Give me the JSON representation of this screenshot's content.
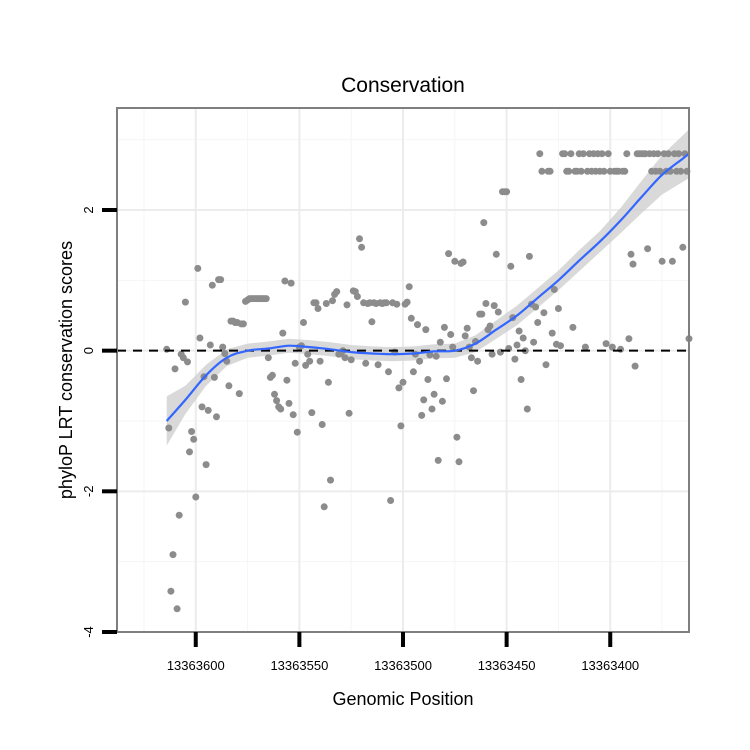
{
  "chart_data": {
    "type": "scatter",
    "title": "Conservation",
    "xlabel": "Genomic Position",
    "ylabel": "phyloP LRT conservation scores",
    "xlim": [
      13363362,
      13363638
    ],
    "x_reversed": true,
    "ylim": [
      -4,
      3.45
    ],
    "x_ticks": [
      13363600,
      13363550,
      13363500,
      13363450,
      13363400
    ],
    "x_tick_labels": [
      "13363600",
      "13363550",
      "13363500",
      "13363450",
      "13363400"
    ],
    "y_ticks": [
      -4,
      -2,
      0,
      2
    ],
    "y_tick_labels": [
      "-4",
      "-2",
      "0",
      "2"
    ],
    "reference_line_y": 0,
    "grid": true,
    "colors": {
      "points": "#8c8c8c",
      "smooth_line": "#3366ff",
      "ribbon": "#d0d0d0",
      "grid": "#ececec",
      "panel_border": "#7f7f7f",
      "hline": "#000000"
    },
    "series": [
      {
        "name": "phyloP scores",
        "points": [
          [
            13363614,
            0.02
          ],
          [
            13363613,
            -1.1
          ],
          [
            13363612,
            -3.42
          ],
          [
            13363611,
            -2.9
          ],
          [
            13363610,
            -0.26
          ],
          [
            13363609,
            -3.67
          ],
          [
            13363608,
            -2.34
          ],
          [
            13363607,
            -0.05
          ],
          [
            13363606,
            -0.1
          ],
          [
            13363605,
            0.69
          ],
          [
            13363604,
            -0.16
          ],
          [
            13363603,
            -1.44
          ],
          [
            13363602,
            -1.15
          ],
          [
            13363601,
            -1.26
          ],
          [
            13363600,
            -2.08
          ],
          [
            13363599,
            1.17
          ],
          [
            13363598,
            0.18
          ],
          [
            13363597,
            -0.8
          ],
          [
            13363596,
            -0.37
          ],
          [
            13363595,
            -1.62
          ],
          [
            13363594,
            -0.85
          ],
          [
            13363593,
            0.08
          ],
          [
            13363592,
            0.93
          ],
          [
            13363591,
            -0.38
          ],
          [
            13363590,
            -0.94
          ],
          [
            13363589,
            1.01
          ],
          [
            13363588,
            1.01
          ],
          [
            13363587,
            0.05
          ],
          [
            13363586,
            -0.04
          ],
          [
            13363585,
            -0.15
          ],
          [
            13363584,
            -0.5
          ],
          [
            13363583,
            0.42
          ],
          [
            13363582,
            0.42
          ],
          [
            13363581,
            0.4
          ],
          [
            13363580,
            0.4
          ],
          [
            13363579,
            -0.61
          ],
          [
            13363578,
            0.38
          ],
          [
            13363577,
            0.38
          ],
          [
            13363576,
            0.7
          ],
          [
            13363575,
            0.72
          ],
          [
            13363574,
            0.74
          ],
          [
            13363573,
            0.74
          ],
          [
            13363572,
            0.74
          ],
          [
            13363571,
            0.74
          ],
          [
            13363570,
            0.74
          ],
          [
            13363569,
            0.74
          ],
          [
            13363568,
            0.74
          ],
          [
            13363567,
            0.74
          ],
          [
            13363566,
            0.74
          ],
          [
            13363565,
            -0.1
          ],
          [
            13363564,
            -0.38
          ],
          [
            13363563,
            -0.35
          ],
          [
            13363562,
            -0.62
          ],
          [
            13363561,
            -0.71
          ],
          [
            13363560,
            -0.8
          ],
          [
            13363559,
            -0.83
          ],
          [
            13363558,
            0.25
          ],
          [
            13363557,
            0.99
          ],
          [
            13363556,
            -0.42
          ],
          [
            13363555,
            -0.75
          ],
          [
            13363554,
            0.96
          ],
          [
            13363553,
            -0.91
          ],
          [
            13363552,
            -0.18
          ],
          [
            13363551,
            -1.16
          ],
          [
            13363550,
            0.05
          ],
          [
            13363549,
            0.07
          ],
          [
            13363548,
            0.4
          ],
          [
            13363547,
            -0.21
          ],
          [
            13363546,
            -0.05
          ],
          [
            13363545,
            -0.15
          ],
          [
            13363544,
            -0.88
          ],
          [
            13363543,
            0.68
          ],
          [
            13363542,
            0.68
          ],
          [
            13363541,
            0.6
          ],
          [
            13363540,
            -0.15
          ],
          [
            13363539,
            -1.05
          ],
          [
            13363538,
            -2.22
          ],
          [
            13363537,
            0.67
          ],
          [
            13363536,
            -0.45
          ],
          [
            13363535,
            -1.84
          ],
          [
            13363534,
            0.71
          ],
          [
            13363533,
            0.8
          ],
          [
            13363532,
            0.84
          ],
          [
            13363531,
            -0.05
          ],
          [
            13363530,
            -0.04
          ],
          [
            13363529,
            0.0
          ],
          [
            13363528,
            -0.1
          ],
          [
            13363527,
            0.65
          ],
          [
            13363526,
            -0.89
          ],
          [
            13363525,
            -0.13
          ],
          [
            13363524,
            0.85
          ],
          [
            13363523,
            0.84
          ],
          [
            13363522,
            0.77
          ],
          [
            13363521,
            1.59
          ],
          [
            13363520,
            1.47
          ],
          [
            13363519,
            0.68
          ],
          [
            13363518,
            -0.18
          ],
          [
            13363517,
            0.67
          ],
          [
            13363516,
            0.68
          ],
          [
            13363515,
            0.41
          ],
          [
            13363514,
            0.68
          ],
          [
            13363513,
            0.67
          ],
          [
            13363512,
            -0.2
          ],
          [
            13363511,
            0.68
          ],
          [
            13363510,
            0.67
          ],
          [
            13363509,
            0.68
          ],
          [
            13363508,
            0.68
          ],
          [
            13363507,
            -0.3
          ],
          [
            13363506,
            -2.13
          ],
          [
            13363505,
            0.68
          ],
          [
            13363504,
            -0.02
          ],
          [
            13363503,
            0.66
          ],
          [
            13363502,
            -0.53
          ],
          [
            13363501,
            -1.07
          ],
          [
            13363500,
            -0.45
          ],
          [
            13363499,
            0.66
          ],
          [
            13363498,
            0.69
          ],
          [
            13363497,
            0.91
          ],
          [
            13363496,
            0.46
          ],
          [
            13363495,
            -0.3
          ],
          [
            13363494,
            -0.05
          ],
          [
            13363493,
            0.37
          ],
          [
            13363492,
            -0.15
          ],
          [
            13363491,
            -0.92
          ],
          [
            13363490,
            -0.7
          ],
          [
            13363489,
            0.3
          ],
          [
            13363488,
            -0.41
          ],
          [
            13363487,
            -0.06
          ],
          [
            13363486,
            -0.83
          ],
          [
            13363485,
            -0.62
          ],
          [
            13363484,
            -0.08
          ],
          [
            13363483,
            -1.56
          ],
          [
            13363482,
            0.12
          ],
          [
            13363481,
            -0.72
          ],
          [
            13363480,
            0.33
          ],
          [
            13363479,
            -0.4
          ],
          [
            13363478,
            1.38
          ],
          [
            13363477,
            0.23
          ],
          [
            13363476,
            0.05
          ],
          [
            13363475,
            1.27
          ],
          [
            13363474,
            -1.23
          ],
          [
            13363473,
            -1.58
          ],
          [
            13363472,
            1.24
          ],
          [
            13363471,
            1.26
          ],
          [
            13363470,
            0.21
          ],
          [
            13363469,
            0.32
          ],
          [
            13363468,
            0.05
          ],
          [
            13363467,
            -0.1
          ],
          [
            13363466,
            -0.57
          ],
          [
            13363465,
            0.13
          ],
          [
            13363464,
            -0.15
          ],
          [
            13363463,
            0.52
          ],
          [
            13363462,
            0.52
          ],
          [
            13363461,
            1.82
          ],
          [
            13363460,
            0.67
          ],
          [
            13363459,
            0.3
          ],
          [
            13363458,
            0.35
          ],
          [
            13363457,
            -0.05
          ],
          [
            13363456,
            0.64
          ],
          [
            13363455,
            1.37
          ],
          [
            13363454,
            0.55
          ],
          [
            13363453,
            -0.02
          ],
          [
            13363452,
            2.26
          ],
          [
            13363451,
            2.26
          ],
          [
            13363450,
            2.26
          ],
          [
            13363449,
            0.03
          ],
          [
            13363448,
            1.2
          ],
          [
            13363447,
            0.47
          ],
          [
            13363446,
            -0.12
          ],
          [
            13363445,
            0.08
          ],
          [
            13363444,
            0.28
          ],
          [
            13363443,
            -0.41
          ],
          [
            13363442,
            0.18
          ],
          [
            13363441,
            0.0
          ],
          [
            13363440,
            -0.83
          ],
          [
            13363439,
            1.34
          ],
          [
            13363438,
            0.66
          ],
          [
            13363437,
            0.12
          ],
          [
            13363436,
            0.62
          ],
          [
            13363435,
            0.4
          ],
          [
            13363434,
            2.8
          ],
          [
            13363433,
            2.55
          ],
          [
            13363432,
            0.54
          ],
          [
            13363431,
            -0.2
          ],
          [
            13363430,
            2.55
          ],
          [
            13363429,
            2.55
          ],
          [
            13363428,
            0.25
          ],
          [
            13363427,
            0.87
          ],
          [
            13363426,
            0.09
          ],
          [
            13363425,
            0.6
          ],
          [
            13363424,
            0.07
          ],
          [
            13363423,
            2.8
          ],
          [
            13363422,
            2.8
          ],
          [
            13363421,
            2.55
          ],
          [
            13363420,
            2.55
          ],
          [
            13363419,
            2.8
          ],
          [
            13363418,
            0.33
          ],
          [
            13363417,
            2.55
          ],
          [
            13363416,
            2.55
          ],
          [
            13363415,
            2.8
          ],
          [
            13363414,
            2.55
          ],
          [
            13363413,
            2.8
          ],
          [
            13363412,
            0.05
          ],
          [
            13363411,
            2.55
          ],
          [
            13363410,
            2.8
          ],
          [
            13363409,
            2.55
          ],
          [
            13363408,
            2.8
          ],
          [
            13363407,
            2.55
          ],
          [
            13363406,
            2.8
          ],
          [
            13363405,
            2.55
          ],
          [
            13363404,
            2.8
          ],
          [
            13363403,
            2.55
          ],
          [
            13363402,
            0.1
          ],
          [
            13363401,
            2.8
          ],
          [
            13363400,
            2.55
          ],
          [
            13363399,
            0.05
          ],
          [
            13363398,
            2.55
          ],
          [
            13363397,
            2.55
          ],
          [
            13363396,
            2.55
          ],
          [
            13363395,
            0.02
          ],
          [
            13363394,
            2.55
          ],
          [
            13363393,
            2.55
          ],
          [
            13363392,
            2.8
          ],
          [
            13363391,
            0.17
          ],
          [
            13363390,
            1.37
          ],
          [
            13363389,
            1.23
          ],
          [
            13363388,
            -0.22
          ],
          [
            13363387,
            2.8
          ],
          [
            13363386,
            2.8
          ],
          [
            13363385,
            2.8
          ],
          [
            13363384,
            2.8
          ],
          [
            13363383,
            2.8
          ],
          [
            13363382,
            1.45
          ],
          [
            13363381,
            2.8
          ],
          [
            13363380,
            2.55
          ],
          [
            13363379,
            2.8
          ],
          [
            13363378,
            2.55
          ],
          [
            13363377,
            2.8
          ],
          [
            13363376,
            2.55
          ],
          [
            13363375,
            1.27
          ],
          [
            13363374,
            2.8
          ],
          [
            13363373,
            2.55
          ],
          [
            13363372,
            2.8
          ],
          [
            13363371,
            2.55
          ],
          [
            13363370,
            1.27
          ],
          [
            13363369,
            2.8
          ],
          [
            13363368,
            2.55
          ],
          [
            13363367,
            2.8
          ],
          [
            13363366,
            2.55
          ],
          [
            13363365,
            1.47
          ],
          [
            13363364,
            2.8
          ],
          [
            13363363,
            2.55
          ],
          [
            13363362,
            0.17
          ]
        ]
      }
    ],
    "smooth": {
      "name": "loess fit",
      "x": [
        13363614,
        13363605,
        13363595,
        13363585,
        13363575,
        13363565,
        13363555,
        13363545,
        13363535,
        13363525,
        13363515,
        13363505,
        13363495,
        13363485,
        13363475,
        13363465,
        13363455,
        13363445,
        13363435,
        13363425,
        13363415,
        13363405,
        13363395,
        13363385,
        13363375,
        13363365,
        13363362
      ],
      "y": [
        -1.0,
        -0.7,
        -0.35,
        -0.1,
        0.0,
        0.03,
        0.07,
        0.05,
        0.02,
        -0.02,
        -0.04,
        -0.05,
        -0.04,
        -0.01,
        0.0,
        0.1,
        0.3,
        0.5,
        0.75,
        1.0,
        1.28,
        1.55,
        1.85,
        2.18,
        2.5,
        2.73,
        2.8
      ],
      "lower": [
        -1.35,
        -0.9,
        -0.5,
        -0.22,
        -0.1,
        -0.07,
        -0.03,
        -0.05,
        -0.08,
        -0.12,
        -0.14,
        -0.15,
        -0.14,
        -0.11,
        -0.1,
        -0.02,
        0.17,
        0.36,
        0.61,
        0.86,
        1.13,
        1.4,
        1.67,
        1.95,
        2.22,
        2.4,
        2.45
      ],
      "upper": [
        -0.65,
        -0.5,
        -0.2,
        0.02,
        0.1,
        0.13,
        0.17,
        0.15,
        0.12,
        0.08,
        0.06,
        0.05,
        0.06,
        0.09,
        0.1,
        0.22,
        0.43,
        0.64,
        0.89,
        1.14,
        1.43,
        1.7,
        2.03,
        2.41,
        2.78,
        3.06,
        3.15
      ]
    }
  }
}
